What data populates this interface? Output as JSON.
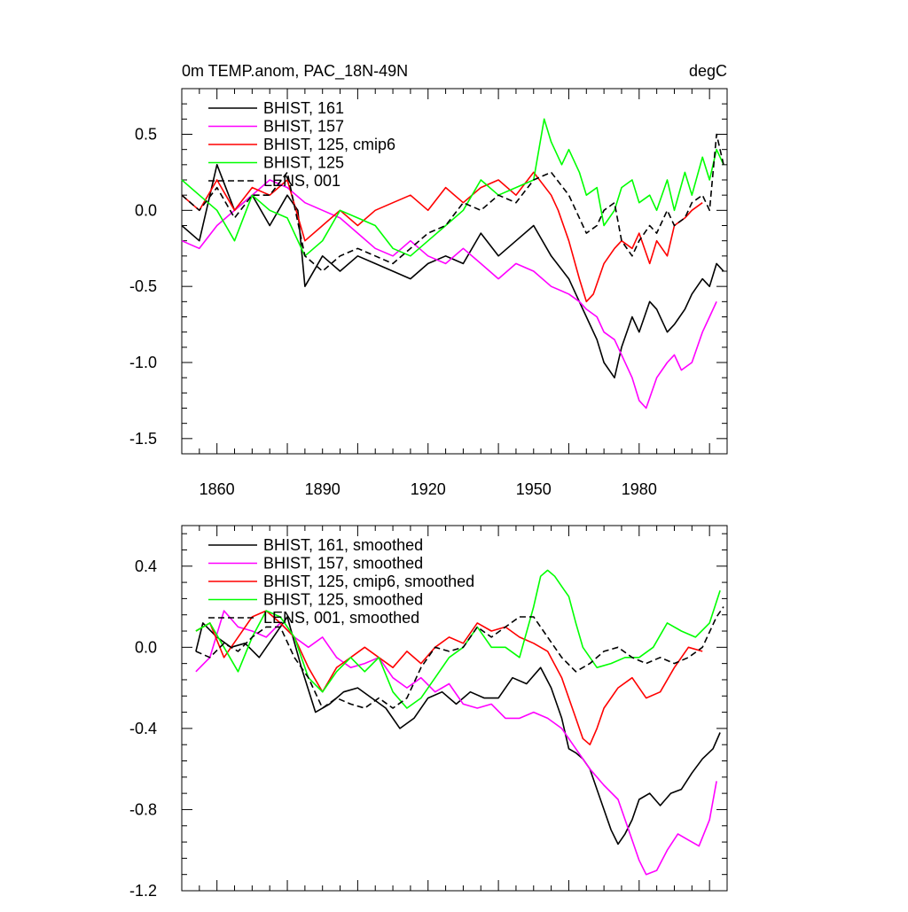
{
  "chart_data": [
    {
      "type": "line",
      "title": "0m TEMP.anom, PAC_18N-49N",
      "units": "degC",
      "xlim": [
        1850,
        2005
      ],
      "ylim": [
        -1.6,
        0.8
      ],
      "xticks": [
        1860,
        1890,
        1920,
        1950,
        1980
      ],
      "yticks": [
        0.5,
        0.0,
        -0.5,
        -1.0,
        -1.5
      ],
      "ytick_labels": [
        "0.5",
        "0.0",
        "-0.5",
        "-1.0",
        "-1.5"
      ],
      "grid": false,
      "legend": "top-left",
      "series": [
        {
          "name": "BHIST, 161",
          "color": "#000000",
          "dash": false,
          "x": [
            1850,
            1855,
            1860,
            1865,
            1870,
            1875,
            1880,
            1883,
            1885,
            1890,
            1895,
            1900,
            1905,
            1910,
            1915,
            1920,
            1925,
            1930,
            1935,
            1940,
            1945,
            1950,
            1955,
            1960,
            1962,
            1965,
            1968,
            1970,
            1973,
            1975,
            1978,
            1980,
            1983,
            1985,
            1988,
            1990,
            1993,
            1995,
            1998,
            2000,
            2002,
            2004
          ],
          "y": [
            -0.1,
            -0.2,
            0.3,
            0.0,
            0.1,
            -0.1,
            0.1,
            0.0,
            -0.5,
            -0.3,
            -0.4,
            -0.3,
            -0.35,
            -0.4,
            -0.45,
            -0.35,
            -0.3,
            -0.35,
            -0.15,
            -0.3,
            -0.2,
            -0.1,
            -0.3,
            -0.45,
            -0.55,
            -0.7,
            -0.85,
            -1.0,
            -1.1,
            -0.9,
            -0.7,
            -0.8,
            -0.6,
            -0.65,
            -0.8,
            -0.75,
            -0.65,
            -0.55,
            -0.45,
            -0.5,
            -0.35,
            -0.4
          ]
        },
        {
          "name": "BHIST, 157",
          "color": "#ff00ff",
          "dash": false,
          "x": [
            1850,
            1855,
            1860,
            1865,
            1870,
            1875,
            1880,
            1885,
            1890,
            1895,
            1900,
            1905,
            1910,
            1915,
            1920,
            1925,
            1930,
            1935,
            1940,
            1945,
            1950,
            1955,
            1960,
            1963,
            1965,
            1968,
            1970,
            1973,
            1975,
            1978,
            1980,
            1982,
            1985,
            1988,
            1990,
            1992,
            1995,
            1998,
            2000,
            2002
          ],
          "y": [
            -0.2,
            -0.25,
            -0.1,
            0.0,
            0.1,
            0.2,
            0.15,
            0.05,
            0.0,
            -0.05,
            -0.15,
            -0.25,
            -0.3,
            -0.2,
            -0.3,
            -0.35,
            -0.25,
            -0.35,
            -0.45,
            -0.35,
            -0.4,
            -0.5,
            -0.55,
            -0.6,
            -0.65,
            -0.7,
            -0.8,
            -0.85,
            -0.95,
            -1.1,
            -1.25,
            -1.3,
            -1.1,
            -1.0,
            -0.95,
            -1.05,
            -1.0,
            -0.8,
            -0.7,
            -0.6
          ]
        },
        {
          "name": "BHIST, 125, cmip6",
          "color": "#ff0000",
          "dash": false,
          "x": [
            1850,
            1855,
            1860,
            1865,
            1870,
            1875,
            1880,
            1885,
            1890,
            1895,
            1900,
            1905,
            1910,
            1915,
            1920,
            1925,
            1930,
            1935,
            1940,
            1945,
            1950,
            1955,
            1957,
            1960,
            1963,
            1965,
            1967,
            1970,
            1973,
            1975,
            1978,
            1980,
            1983,
            1985,
            1988,
            1990,
            1993,
            1995,
            1998
          ],
          "y": [
            0.1,
            0.0,
            0.2,
            0.0,
            0.15,
            0.1,
            0.2,
            -0.2,
            -0.1,
            0.0,
            -0.1,
            0.0,
            0.05,
            0.1,
            0.0,
            0.15,
            0.05,
            0.15,
            0.2,
            0.1,
            0.25,
            0.1,
            0.0,
            -0.2,
            -0.45,
            -0.6,
            -0.55,
            -0.35,
            -0.25,
            -0.2,
            -0.25,
            -0.15,
            -0.35,
            -0.2,
            -0.3,
            -0.1,
            -0.05,
            0.0,
            0.05
          ]
        },
        {
          "name": "BHIST, 125",
          "color": "#00ff00",
          "dash": false,
          "x": [
            1850,
            1855,
            1860,
            1865,
            1870,
            1875,
            1880,
            1885,
            1890,
            1895,
            1900,
            1905,
            1910,
            1915,
            1920,
            1925,
            1930,
            1935,
            1940,
            1945,
            1950,
            1953,
            1955,
            1958,
            1960,
            1963,
            1965,
            1968,
            1970,
            1973,
            1975,
            1978,
            1980,
            1983,
            1985,
            1988,
            1990,
            1993,
            1995,
            1998,
            2000,
            2002,
            2004
          ],
          "y": [
            0.2,
            0.1,
            0.0,
            -0.2,
            0.1,
            0.0,
            -0.05,
            -0.3,
            -0.2,
            0.0,
            -0.05,
            -0.1,
            -0.25,
            -0.3,
            -0.2,
            -0.1,
            0.0,
            0.2,
            0.1,
            0.15,
            0.2,
            0.6,
            0.45,
            0.3,
            0.4,
            0.25,
            0.1,
            0.15,
            -0.1,
            0.0,
            0.15,
            0.2,
            0.05,
            0.1,
            0.0,
            0.2,
            0.0,
            0.25,
            0.1,
            0.35,
            0.2,
            0.4,
            0.3
          ]
        },
        {
          "name": "LENS, 001",
          "color": "#000000",
          "dash": true,
          "x": [
            1850,
            1855,
            1860,
            1865,
            1870,
            1875,
            1880,
            1885,
            1890,
            1895,
            1900,
            1905,
            1910,
            1915,
            1920,
            1925,
            1930,
            1935,
            1940,
            1945,
            1950,
            1955,
            1960,
            1965,
            1968,
            1970,
            1973,
            1975,
            1978,
            1980,
            1983,
            1985,
            1988,
            1990,
            1993,
            1995,
            1998,
            2000,
            2002,
            2004
          ],
          "y": [
            0.1,
            0.0,
            0.15,
            -0.05,
            0.1,
            0.1,
            0.25,
            -0.3,
            -0.4,
            -0.3,
            -0.25,
            -0.3,
            -0.35,
            -0.25,
            -0.15,
            -0.1,
            0.05,
            0.0,
            0.1,
            0.05,
            0.2,
            0.25,
            0.1,
            -0.15,
            -0.1,
            0.0,
            0.05,
            -0.2,
            -0.3,
            -0.2,
            -0.1,
            -0.15,
            0.0,
            -0.1,
            -0.05,
            0.05,
            0.1,
            0.0,
            0.5,
            0.3
          ]
        }
      ]
    },
    {
      "type": "line",
      "title": "",
      "xlim": [
        1850,
        2005
      ],
      "ylim": [
        -1.2,
        0.6
      ],
      "yticks": [
        0.4,
        0.0,
        -0.4,
        -0.8,
        -1.2
      ],
      "ytick_labels": [
        "0.4",
        "0.0",
        "-0.4",
        "-0.8",
        "-1.2"
      ],
      "grid": false,
      "legend": "top-left",
      "series": [
        {
          "name": "BHIST, 161, smoothed",
          "color": "#000000",
          "dash": false,
          "x": [
            1854,
            1856,
            1860,
            1864,
            1868,
            1872,
            1876,
            1880,
            1884,
            1888,
            1892,
            1896,
            1900,
            1904,
            1908,
            1912,
            1916,
            1920,
            1924,
            1928,
            1932,
            1936,
            1940,
            1944,
            1948,
            1952,
            1955,
            1958,
            1960,
            1962,
            1964,
            1966,
            1968,
            1970,
            1972,
            1974,
            1976,
            1978,
            1980,
            1983,
            1986,
            1989,
            1992,
            1995,
            1998,
            2001,
            2003
          ],
          "y": [
            -0.02,
            0.12,
            0.05,
            0.0,
            0.02,
            -0.05,
            0.05,
            0.15,
            -0.1,
            -0.32,
            -0.28,
            -0.22,
            -0.2,
            -0.25,
            -0.3,
            -0.4,
            -0.35,
            -0.25,
            -0.22,
            -0.28,
            -0.22,
            -0.25,
            -0.25,
            -0.15,
            -0.18,
            -0.1,
            -0.2,
            -0.35,
            -0.5,
            -0.52,
            -0.55,
            -0.6,
            -0.7,
            -0.8,
            -0.9,
            -0.97,
            -0.92,
            -0.85,
            -0.75,
            -0.72,
            -0.78,
            -0.72,
            -0.7,
            -0.62,
            -0.55,
            -0.5,
            -0.42
          ]
        },
        {
          "name": "BHIST, 157, smoothed",
          "color": "#ff00ff",
          "dash": false,
          "x": [
            1854,
            1858,
            1862,
            1866,
            1870,
            1874,
            1878,
            1882,
            1886,
            1890,
            1894,
            1898,
            1902,
            1906,
            1910,
            1914,
            1918,
            1922,
            1926,
            1930,
            1934,
            1938,
            1942,
            1946,
            1950,
            1954,
            1958,
            1962,
            1966,
            1970,
            1974,
            1978,
            1980,
            1982,
            1985,
            1988,
            1991,
            1994,
            1997,
            2000,
            2002
          ],
          "y": [
            -0.12,
            -0.05,
            0.18,
            0.1,
            0.08,
            0.05,
            0.12,
            0.05,
            0.0,
            0.05,
            -0.05,
            -0.1,
            -0.08,
            -0.05,
            -0.15,
            -0.2,
            -0.15,
            -0.22,
            -0.18,
            -0.28,
            -0.3,
            -0.28,
            -0.35,
            -0.35,
            -0.32,
            -0.35,
            -0.4,
            -0.5,
            -0.6,
            -0.68,
            -0.75,
            -0.95,
            -1.05,
            -1.12,
            -1.1,
            -1.0,
            -0.92,
            -0.95,
            -0.98,
            -0.85,
            -0.66
          ]
        },
        {
          "name": "BHIST, 125, cmip6, smoothed",
          "color": "#ff0000",
          "dash": false,
          "x": [
            1854,
            1858,
            1862,
            1866,
            1870,
            1874,
            1878,
            1882,
            1886,
            1890,
            1894,
            1898,
            1902,
            1906,
            1910,
            1914,
            1918,
            1922,
            1926,
            1930,
            1934,
            1938,
            1942,
            1946,
            1950,
            1954,
            1958,
            1962,
            1964,
            1966,
            1968,
            1970,
            1974,
            1978,
            1982,
            1986,
            1990,
            1994,
            1998
          ],
          "y": [
            0.08,
            0.12,
            -0.05,
            0.05,
            0.15,
            0.18,
            0.12,
            0.05,
            -0.1,
            -0.22,
            -0.1,
            -0.05,
            0.0,
            -0.05,
            -0.1,
            -0.02,
            -0.08,
            0.0,
            0.05,
            0.02,
            0.12,
            0.08,
            0.1,
            0.05,
            0.02,
            -0.02,
            -0.15,
            -0.35,
            -0.45,
            -0.48,
            -0.4,
            -0.3,
            -0.2,
            -0.15,
            -0.25,
            -0.22,
            -0.1,
            0.0,
            -0.02
          ]
        },
        {
          "name": "BHIST, 125, smoothed",
          "color": "#00ff00",
          "dash": false,
          "x": [
            1854,
            1858,
            1862,
            1866,
            1870,
            1874,
            1878,
            1882,
            1886,
            1890,
            1894,
            1898,
            1902,
            1906,
            1910,
            1914,
            1918,
            1922,
            1926,
            1930,
            1934,
            1938,
            1942,
            1946,
            1950,
            1952,
            1954,
            1956,
            1958,
            1960,
            1962,
            1964,
            1968,
            1972,
            1976,
            1980,
            1984,
            1988,
            1992,
            1996,
            2000,
            2003
          ],
          "y": [
            0.08,
            0.12,
            0.0,
            -0.12,
            0.05,
            0.18,
            0.15,
            0.05,
            -0.15,
            -0.22,
            -0.12,
            -0.05,
            -0.12,
            -0.05,
            -0.22,
            -0.3,
            -0.25,
            -0.15,
            -0.05,
            0.0,
            0.1,
            0.0,
            0.0,
            -0.05,
            0.2,
            0.35,
            0.38,
            0.35,
            0.3,
            0.25,
            0.12,
            0.0,
            -0.1,
            -0.08,
            -0.05,
            -0.05,
            0.0,
            0.12,
            0.08,
            0.05,
            0.12,
            0.28
          ]
        },
        {
          "name": "LENS, 001, smoothed",
          "color": "#000000",
          "dash": true,
          "x": [
            1854,
            1858,
            1862,
            1866,
            1870,
            1874,
            1878,
            1882,
            1886,
            1890,
            1894,
            1898,
            1902,
            1906,
            1910,
            1914,
            1918,
            1922,
            1926,
            1930,
            1934,
            1938,
            1942,
            1946,
            1950,
            1954,
            1958,
            1962,
            1966,
            1970,
            1974,
            1978,
            1982,
            1986,
            1990,
            1994,
            1998,
            2002,
            2004
          ],
          "y": [
            -0.02,
            -0.05,
            0.02,
            -0.02,
            0.05,
            0.1,
            0.1,
            -0.05,
            -0.15,
            -0.3,
            -0.25,
            -0.28,
            -0.3,
            -0.25,
            -0.3,
            -0.25,
            -0.1,
            0.0,
            -0.02,
            0.0,
            0.1,
            0.05,
            0.1,
            0.15,
            0.15,
            0.05,
            -0.05,
            -0.12,
            -0.08,
            -0.02,
            0.0,
            -0.05,
            -0.08,
            -0.05,
            -0.08,
            -0.05,
            0.0,
            0.15,
            0.2
          ]
        }
      ]
    }
  ]
}
